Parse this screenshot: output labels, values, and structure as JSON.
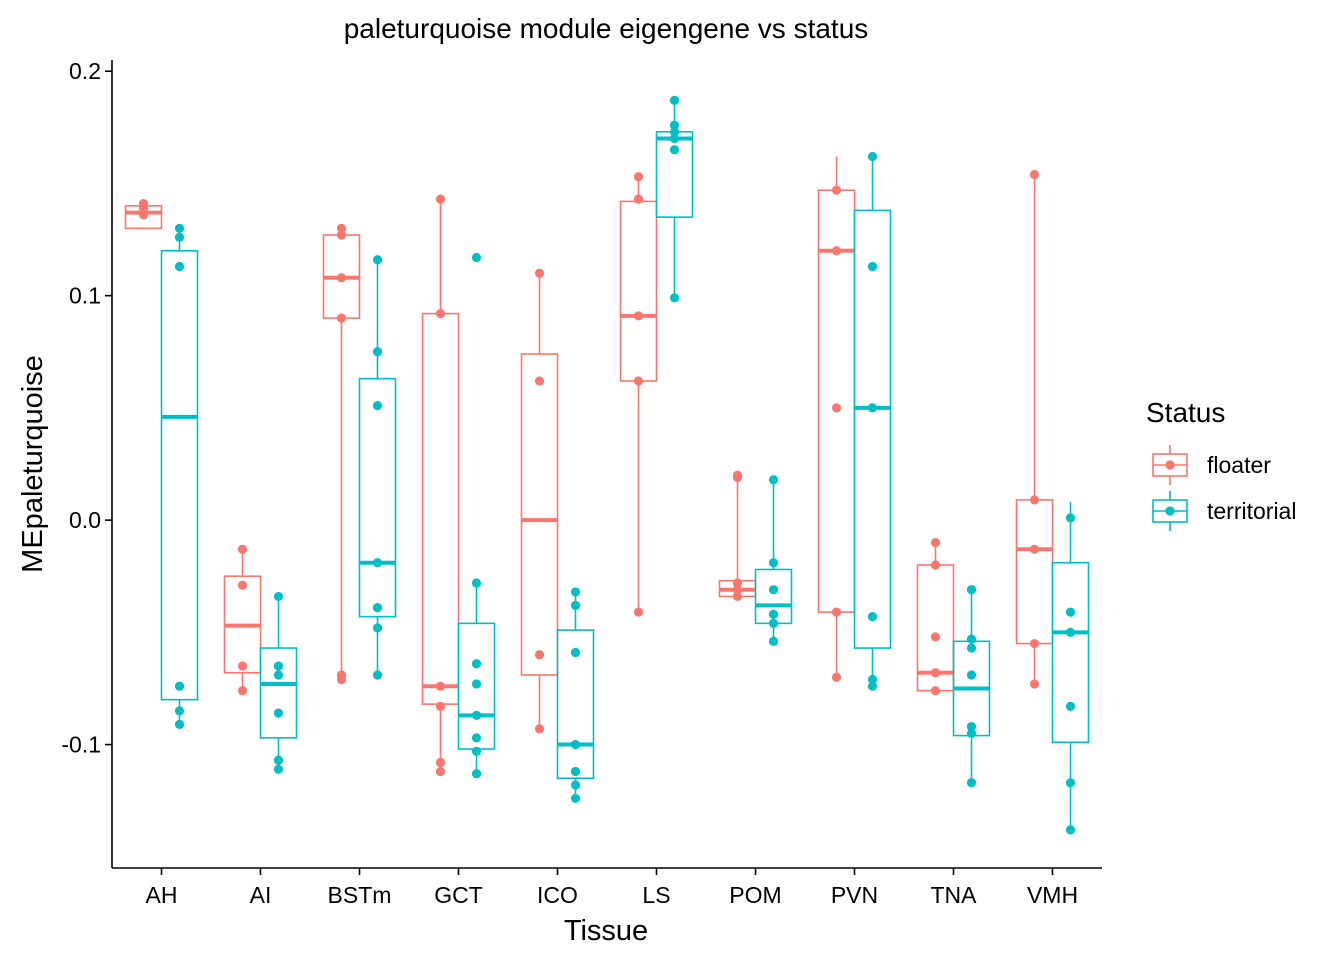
{
  "chart_data": {
    "type": "boxplot",
    "title": "paleturquoise module eigengene vs status",
    "xlabel": "Tissue",
    "ylabel": "MEpaleturquoise",
    "ylim": [
      -0.155,
      0.205
    ],
    "yticks": [
      0.2,
      0.1,
      0.0,
      -0.1
    ],
    "ytick_labels": [
      "0.2",
      "0.1",
      "0.0",
      "-0.1"
    ],
    "grid": false,
    "legend": {
      "title": "Status",
      "position": "right",
      "entries": [
        {
          "label": "floater",
          "color": "#F8766D"
        },
        {
          "label": "territorial",
          "color": "#00BFC4"
        }
      ]
    },
    "categories": [
      "AH",
      "AI",
      "BSTm",
      "GCT",
      "ICO",
      "LS",
      "POM",
      "PVN",
      "TNA",
      "VMH"
    ],
    "series": [
      {
        "name": "floater",
        "color": "#F8766D",
        "boxes": [
          {
            "whisker_low": 0.13,
            "q1": 0.13,
            "median": 0.137,
            "q3": 0.14,
            "whisker_high": 0.141
          },
          {
            "whisker_low": -0.076,
            "q1": -0.068,
            "median": -0.047,
            "q3": -0.025,
            "whisker_high": -0.013
          },
          {
            "whisker_low": -0.071,
            "q1": 0.09,
            "median": 0.108,
            "q3": 0.127,
            "whisker_high": 0.13
          },
          {
            "whisker_low": -0.11,
            "q1": -0.082,
            "median": -0.074,
            "q3": 0.092,
            "whisker_high": 0.143
          },
          {
            "whisker_low": -0.093,
            "q1": -0.069,
            "median": 0.0,
            "q3": 0.074,
            "whisker_high": 0.11
          },
          {
            "whisker_low": -0.041,
            "q1": 0.062,
            "median": 0.091,
            "q3": 0.142,
            "whisker_high": 0.153
          },
          {
            "whisker_low": -0.034,
            "q1": -0.034,
            "median": -0.031,
            "q3": -0.027,
            "whisker_high": 0.02
          },
          {
            "whisker_low": -0.07,
            "q1": -0.041,
            "median": 0.12,
            "q3": 0.147,
            "whisker_high": 0.162
          },
          {
            "whisker_low": -0.076,
            "q1": -0.076,
            "median": -0.068,
            "q3": -0.02,
            "whisker_high": -0.01
          },
          {
            "whisker_low": -0.073,
            "q1": -0.055,
            "median": -0.013,
            "q3": 0.009,
            "whisker_high": 0.154
          }
        ],
        "points": [
          [
            0.141,
            0.136,
            0.139
          ],
          [
            -0.013,
            -0.029,
            -0.065,
            -0.076
          ],
          [
            0.13,
            0.127,
            0.108,
            0.09,
            -0.069,
            -0.071
          ],
          [
            0.143,
            0.092,
            -0.074,
            -0.083,
            -0.108,
            -0.112
          ],
          [
            0.11,
            0.062,
            -0.06,
            -0.093
          ],
          [
            0.153,
            0.143,
            0.091,
            0.062,
            -0.041
          ],
          [
            0.02,
            0.019,
            -0.028,
            -0.031,
            -0.034
          ],
          [
            0.147,
            0.12,
            0.05,
            -0.041,
            -0.07
          ],
          [
            -0.01,
            -0.02,
            -0.052,
            -0.068,
            -0.076
          ],
          [
            0.154,
            0.009,
            -0.013,
            -0.055,
            -0.073
          ]
        ]
      },
      {
        "name": "territorial",
        "color": "#00BFC4",
        "boxes": [
          {
            "whisker_low": -0.091,
            "q1": -0.08,
            "median": 0.046,
            "q3": 0.12,
            "whisker_high": 0.13
          },
          {
            "whisker_low": -0.111,
            "q1": -0.097,
            "median": -0.073,
            "q3": -0.057,
            "whisker_high": -0.034
          },
          {
            "whisker_low": -0.07,
            "q1": -0.043,
            "median": -0.019,
            "q3": 0.063,
            "whisker_high": 0.116
          },
          {
            "whisker_low": -0.113,
            "q1": -0.102,
            "median": -0.087,
            "q3": -0.046,
            "whisker_high": -0.028
          },
          {
            "whisker_low": -0.124,
            "q1": -0.115,
            "median": -0.1,
            "q3": -0.049,
            "whisker_high": -0.032
          },
          {
            "whisker_low": 0.1,
            "q1": 0.135,
            "median": 0.17,
            "q3": 0.173,
            "whisker_high": 0.187
          },
          {
            "whisker_low": -0.054,
            "q1": -0.046,
            "median": -0.038,
            "q3": -0.022,
            "whisker_high": 0.018
          },
          {
            "whisker_low": -0.074,
            "q1": -0.057,
            "median": 0.05,
            "q3": 0.138,
            "whisker_high": 0.162
          },
          {
            "whisker_low": -0.117,
            "q1": -0.096,
            "median": -0.075,
            "q3": -0.054,
            "whisker_high": -0.031
          },
          {
            "whisker_low": -0.138,
            "q1": -0.099,
            "median": -0.05,
            "q3": -0.019,
            "whisker_high": 0.008
          }
        ],
        "points": [
          [
            0.13,
            0.126,
            0.113,
            -0.074,
            -0.085,
            -0.091
          ],
          [
            -0.034,
            -0.065,
            -0.069,
            -0.086,
            -0.107,
            -0.111
          ],
          [
            0.116,
            0.075,
            0.051,
            -0.019,
            -0.039,
            -0.048,
            -0.069
          ],
          [
            0.117,
            -0.028,
            -0.064,
            -0.073,
            -0.087,
            -0.097,
            -0.103,
            -0.113
          ],
          [
            -0.032,
            -0.038,
            -0.059,
            -0.1,
            -0.112,
            -0.118,
            -0.124
          ],
          [
            0.187,
            0.176,
            0.173,
            0.17,
            0.165,
            0.099
          ],
          [
            0.018,
            -0.019,
            -0.031,
            -0.042,
            -0.046,
            -0.054
          ],
          [
            0.162,
            0.113,
            0.05,
            -0.043,
            -0.071,
            -0.074
          ],
          [
            -0.031,
            -0.053,
            -0.057,
            -0.069,
            -0.092,
            -0.095,
            -0.117
          ],
          [
            0.001,
            -0.041,
            -0.05,
            -0.083,
            -0.117,
            -0.138
          ]
        ]
      }
    ]
  }
}
